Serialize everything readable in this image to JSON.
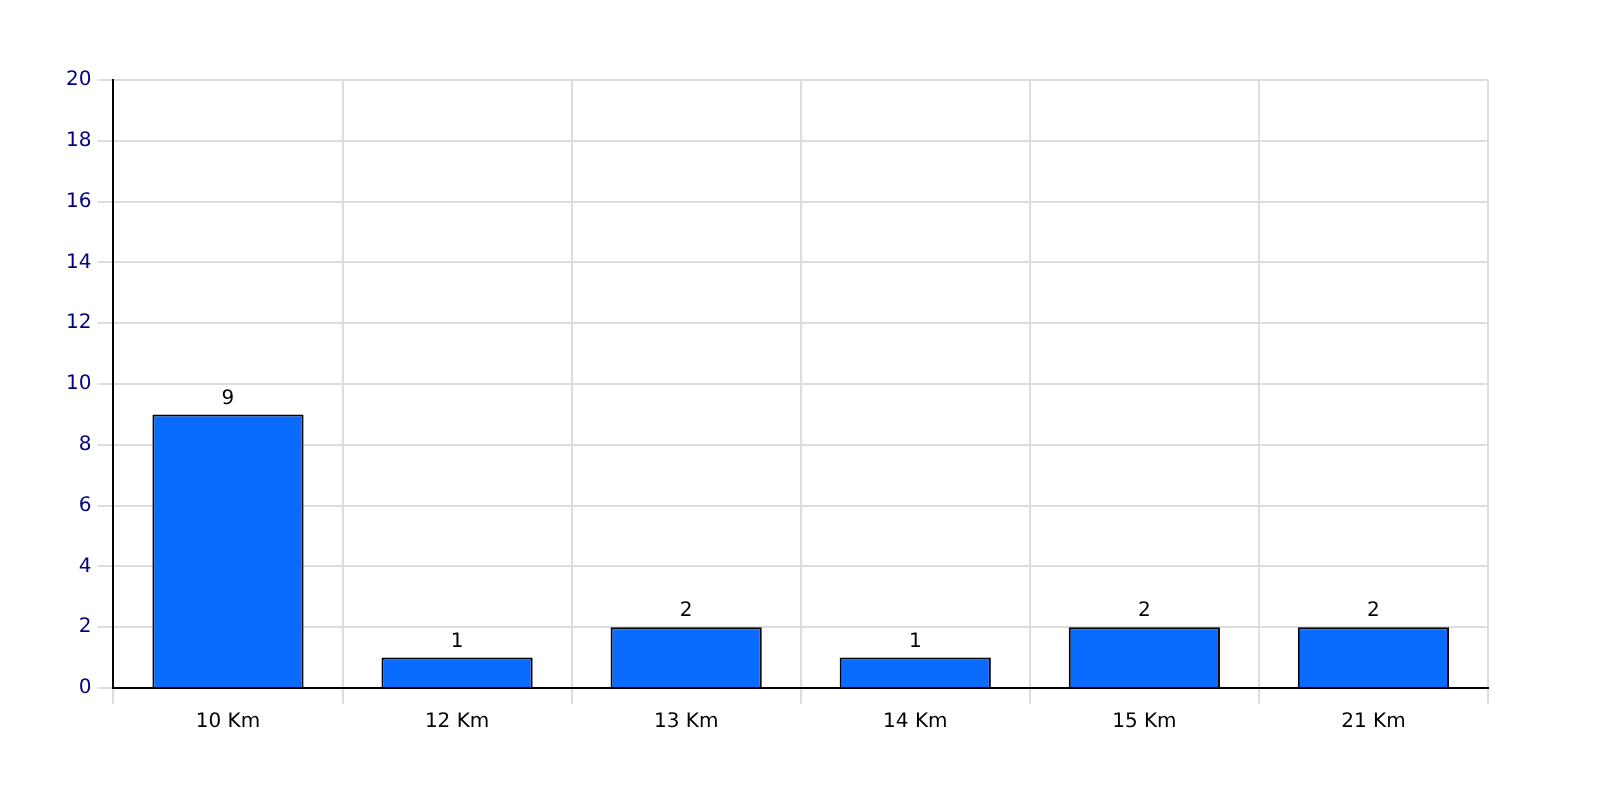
{
  "chart_data": {
    "type": "bar",
    "categories": [
      "10 Km",
      "12 Km",
      "13 Km",
      "14 Km",
      "15 Km",
      "21 Km"
    ],
    "values": [
      9,
      1,
      2,
      1,
      2,
      2
    ],
    "color": "#0a6cff",
    "ylim": [
      0,
      20
    ],
    "yticks": [
      0,
      2,
      4,
      6,
      8,
      10,
      12,
      14,
      16,
      18,
      20
    ],
    "grid": true,
    "data_labels": true
  }
}
